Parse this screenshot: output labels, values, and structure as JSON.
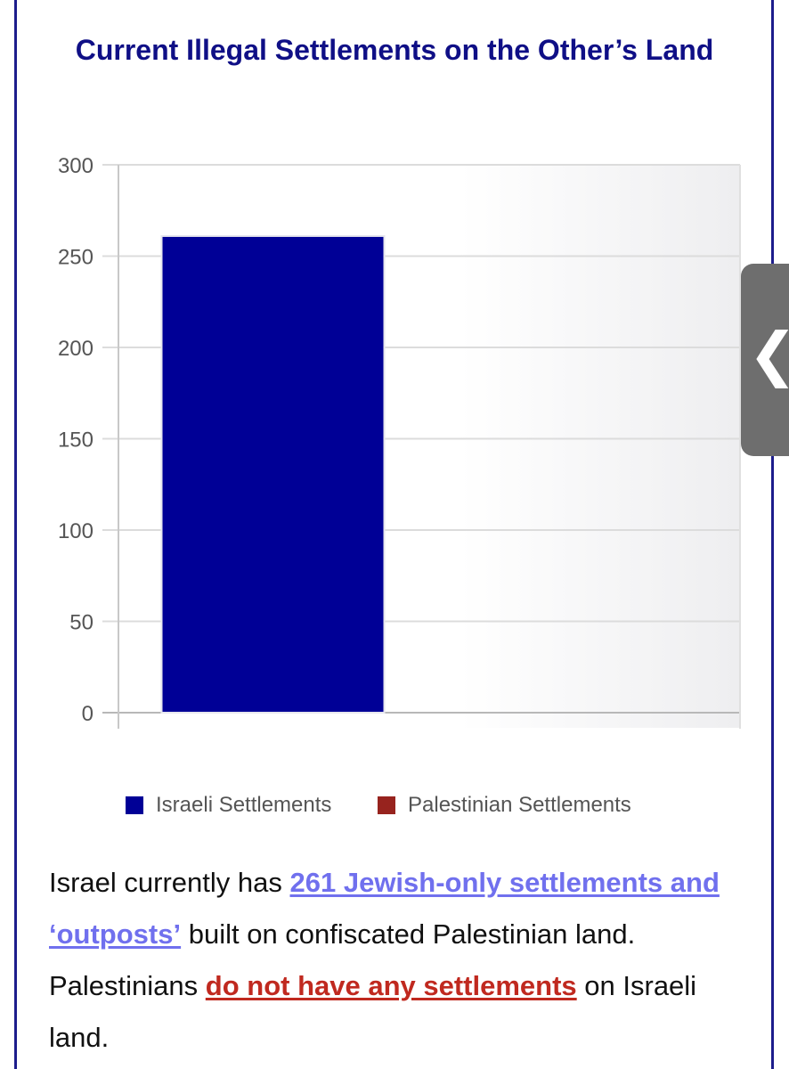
{
  "page": {
    "frame_color": "#1d1d8c"
  },
  "chart_data": {
    "type": "bar",
    "title": "Current Illegal Settlements on the Other’s Land",
    "categories": [
      "Israeli Settlements",
      "Palestinian Settlements"
    ],
    "series": [
      {
        "name": "Israeli Settlements",
        "values": [
          261,
          0
        ],
        "color": "#000096"
      },
      {
        "name": "Palestinian Settlements",
        "values": [
          0,
          0
        ],
        "color": "#97231e"
      }
    ],
    "ylim": [
      0,
      300
    ],
    "yticks": [
      "0",
      "50",
      "100",
      "150",
      "200",
      "250",
      "300"
    ],
    "grid": true,
    "legend_position": "bottom-center",
    "xlabel": "",
    "ylabel": ""
  },
  "legend": {
    "items": [
      {
        "label": "Israeli Settlements",
        "color": "#000096"
      },
      {
        "label": "Palestinian Settlements",
        "color": "#97231e"
      }
    ]
  },
  "side_tab": {
    "icon": "chevron-left-icon",
    "glyph": "❮"
  },
  "description": {
    "text1": "Israel currently has ",
    "link1": "261 Jewish-only settlements and ‘outposts’",
    "text2": " built on confiscated Palestinian land. Palestinians ",
    "link2": "do not have any settlements",
    "text3": " on Israeli land.",
    "link1_color": "#7070ee",
    "link2_color": "#c0291f"
  }
}
